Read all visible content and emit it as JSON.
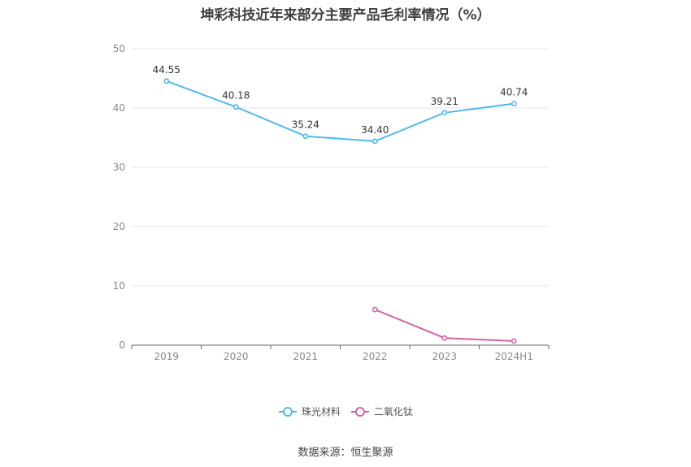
{
  "colors": {
    "series1": "#4fb9ec",
    "series2": "#d462a6",
    "grid": "#e3e6ee",
    "axis": "#666666",
    "tick_text": "#888888",
    "label_text": "#333333"
  },
  "chart_data": {
    "type": "line",
    "title": "坤彩科技近年来部分主要产品毛利率情况（%）",
    "categories": [
      "2019",
      "2020",
      "2021",
      "2022",
      "2023",
      "2024H1"
    ],
    "ylim": [
      0,
      50
    ],
    "yticks": [
      0,
      10,
      20,
      30,
      40,
      50
    ],
    "grid": true,
    "legend_position": "bottom",
    "series": [
      {
        "name": "珠光材料",
        "values": [
          44.55,
          40.18,
          35.24,
          34.4,
          39.21,
          40.74
        ],
        "labels": [
          "44.55",
          "40.18",
          "35.24",
          "34.40",
          "39.21",
          "40.74"
        ]
      },
      {
        "name": "二氧化钛",
        "values": [
          null,
          null,
          null,
          6.0,
          1.2,
          0.7
        ]
      }
    ],
    "source": "数据来源：恒生聚源"
  }
}
